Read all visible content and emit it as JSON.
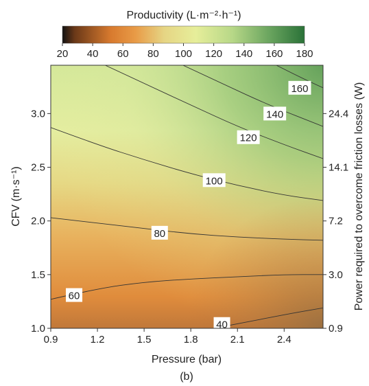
{
  "chart_data": {
    "type": "heatmap",
    "subtype": "contour",
    "colorbar": {
      "title": "Productivity (L·m⁻²·h⁻¹)",
      "range": [
        20,
        180
      ],
      "ticks": [
        "20",
        "40",
        "60",
        "80",
        "100",
        "120",
        "140",
        "160",
        "180"
      ],
      "placement": "top",
      "colors": [
        "#1a1a1a",
        "#e88a30",
        "#e8e898",
        "#2e7d3c"
      ]
    },
    "x": {
      "label": "Pressure (bar)",
      "range": [
        0.9,
        2.65
      ],
      "ticks": [
        "0.9",
        "1.2",
        "1.5",
        "1.8",
        "2.1",
        "2.4"
      ]
    },
    "y": {
      "label": "CFV (m·s⁻¹)",
      "range": [
        1.0,
        3.45
      ],
      "ticks": [
        "1.0",
        "1.5",
        "2.0",
        "2.5",
        "3.0"
      ]
    },
    "y2": {
      "label": "Power required to overcome friction losses (W)",
      "ticks": [
        {
          "cfv": 1.0,
          "label": "0.9"
        },
        {
          "cfv": 1.5,
          "label": "3.0"
        },
        {
          "cfv": 2.0,
          "label": "7.2"
        },
        {
          "cfv": 2.5,
          "label": "14.1"
        },
        {
          "cfv": 3.0,
          "label": "24.4"
        }
      ]
    },
    "contours": [
      {
        "level": 40,
        "label": "40",
        "label_at": [
          2.0,
          1.04
        ],
        "points": [
          [
            1.95,
            1.0
          ],
          [
            2.2,
            1.07
          ],
          [
            2.45,
            1.14
          ],
          [
            2.65,
            1.19
          ]
        ]
      },
      {
        "level": 60,
        "label": "60",
        "label_at": [
          1.05,
          1.31
        ],
        "points": [
          [
            0.9,
            1.27
          ],
          [
            1.2,
            1.37
          ],
          [
            1.5,
            1.43
          ],
          [
            1.8,
            1.46
          ],
          [
            2.1,
            1.48
          ],
          [
            2.4,
            1.5
          ],
          [
            2.65,
            1.5
          ]
        ]
      },
      {
        "level": 80,
        "label": "80",
        "label_at": [
          1.6,
          1.89
        ],
        "points": [
          [
            0.9,
            2.03
          ],
          [
            1.2,
            1.98
          ],
          [
            1.5,
            1.93
          ],
          [
            1.8,
            1.88
          ],
          [
            2.1,
            1.85
          ],
          [
            2.4,
            1.83
          ],
          [
            2.65,
            1.82
          ]
        ]
      },
      {
        "level": 100,
        "label": "100",
        "label_at": [
          1.95,
          2.38
        ],
        "points": [
          [
            0.9,
            2.87
          ],
          [
            1.2,
            2.71
          ],
          [
            1.5,
            2.57
          ],
          [
            1.8,
            2.44
          ],
          [
            2.1,
            2.33
          ],
          [
            2.4,
            2.24
          ],
          [
            2.65,
            2.19
          ]
        ]
      },
      {
        "level": 120,
        "label": "120",
        "label_at": [
          2.17,
          2.78
        ],
        "points": [
          [
            1.25,
            3.45
          ],
          [
            1.5,
            3.28
          ],
          [
            1.8,
            3.08
          ],
          [
            2.1,
            2.88
          ],
          [
            2.4,
            2.71
          ],
          [
            2.65,
            2.58
          ]
        ]
      },
      {
        "level": 140,
        "label": "140",
        "label_at": [
          2.34,
          3.0
        ],
        "points": [
          [
            1.75,
            3.45
          ],
          [
            2.0,
            3.28
          ],
          [
            2.3,
            3.08
          ],
          [
            2.65,
            2.88
          ]
        ]
      },
      {
        "level": 160,
        "label": "160",
        "label_at": [
          2.5,
          3.24
        ],
        "points": [
          [
            2.35,
            3.45
          ],
          [
            2.5,
            3.34
          ],
          [
            2.65,
            3.24
          ]
        ]
      }
    ],
    "caption": "(b)",
    "grid": false
  }
}
